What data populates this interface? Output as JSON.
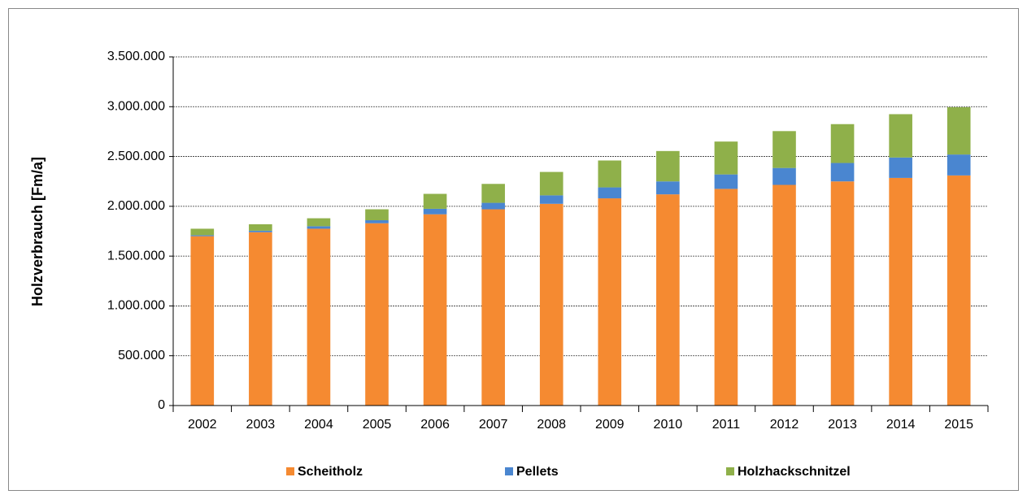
{
  "chart_data": {
    "type": "stacked_bar",
    "y_label": "Holzverbrauch [Fm/a]",
    "categories": [
      "2002",
      "2003",
      "2004",
      "2005",
      "2006",
      "2007",
      "2008",
      "2009",
      "2010",
      "2011",
      "2012",
      "2013",
      "2014",
      "2015"
    ],
    "series": [
      {
        "name": "Scheitholz",
        "color": "#f58a31",
        "values": [
          1700000,
          1740000,
          1775000,
          1830000,
          1920000,
          1970000,
          2025000,
          2080000,
          2120000,
          2175000,
          2215000,
          2250000,
          2285000,
          2310000
        ]
      },
      {
        "name": "Pellets",
        "color": "#4a86d0",
        "values": [
          10000,
          15000,
          25000,
          30000,
          55000,
          65000,
          85000,
          110000,
          130000,
          145000,
          170000,
          185000,
          205000,
          210000
        ]
      },
      {
        "name": "Holzhackschnitzel",
        "color": "#8fb04a",
        "values": [
          65000,
          65000,
          80000,
          110000,
          150000,
          190000,
          235000,
          270000,
          305000,
          330000,
          370000,
          390000,
          435000,
          475000
        ]
      }
    ],
    "ylim": [
      0,
      3500000
    ],
    "yticks": [
      0,
      {
        "value": 500000,
        "label": "500.000"
      },
      {
        "value": 1000000,
        "label": "1.000.000"
      },
      {
        "value": 1500000,
        "label": "1.500.000"
      },
      {
        "value": 2000000,
        "label": "2.000.000"
      },
      {
        "value": 2500000,
        "label": "2.500.000"
      },
      {
        "value": 3000000,
        "label": "3.000.000"
      },
      {
        "value": 3500000,
        "label": "3.500.000"
      }
    ],
    "grid": true,
    "legend": "bottom"
  }
}
